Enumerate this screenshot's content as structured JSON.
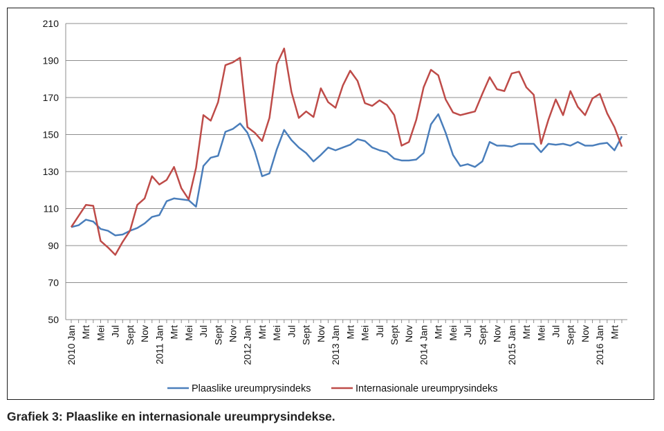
{
  "caption": "Grafiek 3: Plaaslike en internasionale ureumprysindekse.",
  "chart_data": {
    "type": "line",
    "title": "",
    "xlabel": "",
    "ylabel": "",
    "ylim": [
      50,
      210
    ],
    "yticks": [
      50,
      70,
      90,
      110,
      130,
      150,
      170,
      190,
      210
    ],
    "grid": true,
    "legend_position": "bottom",
    "x": [
      "2010 Jan",
      "2010 Feb",
      "2010 Mrt",
      "2010 Apr",
      "2010 Mei",
      "2010 Jun",
      "2010 Jul",
      "2010 Aug",
      "2010 Sept",
      "2010 Okt",
      "2010 Nov",
      "2010 Des",
      "2011 Jan",
      "2011 Feb",
      "2011 Mrt",
      "2011 Apr",
      "2011 Mei",
      "2011 Jun",
      "2011 Jul",
      "2011 Aug",
      "2011 Sept",
      "2011 Okt",
      "2011 Nov",
      "2011 Des",
      "2012 Jan",
      "2012 Feb",
      "2012 Mrt",
      "2012 Apr",
      "2012 Mei",
      "2012 Jun",
      "2012 Jul",
      "2012 Aug",
      "2012 Sept",
      "2012 Okt",
      "2012 Nov",
      "2012 Des",
      "2013 Jan",
      "2013 Feb",
      "2013 Mrt",
      "2013 Apr",
      "2013 Mei",
      "2013 Jun",
      "2013 Jul",
      "2013 Aug",
      "2013 Sept",
      "2013 Okt",
      "2013 Nov",
      "2013 Des",
      "2014 Jan",
      "2014 Feb",
      "2014 Mrt",
      "2014 Apr",
      "2014 Mei",
      "2014 Jun",
      "2014 Jul",
      "2014 Aug",
      "2014 Sept",
      "2014 Okt",
      "2014 Nov",
      "2014 Des",
      "2015 Jan",
      "2015 Feb",
      "2015 Mrt",
      "2015 Apr",
      "2015 Mei",
      "2015 Jun",
      "2015 Jul",
      "2015 Aug",
      "2015 Sept",
      "2015 Okt",
      "2015 Nov",
      "2015 Des",
      "2016 Jan",
      "2016 Feb",
      "2016 Mrt",
      "2016 Apr"
    ],
    "tick_labels": [
      {
        "i": 0,
        "label": "2010 Jan"
      },
      {
        "i": 2,
        "label": "Mrt"
      },
      {
        "i": 4,
        "label": "Mei"
      },
      {
        "i": 6,
        "label": "Jul"
      },
      {
        "i": 8,
        "label": "Sept"
      },
      {
        "i": 10,
        "label": "Nov"
      },
      {
        "i": 12,
        "label": "2011 Jan"
      },
      {
        "i": 14,
        "label": "Mrt"
      },
      {
        "i": 16,
        "label": "Mei"
      },
      {
        "i": 18,
        "label": "Jul"
      },
      {
        "i": 20,
        "label": "Sept"
      },
      {
        "i": 22,
        "label": "Nov"
      },
      {
        "i": 24,
        "label": "2012 Jan"
      },
      {
        "i": 26,
        "label": "Mrt"
      },
      {
        "i": 28,
        "label": "Mei"
      },
      {
        "i": 30,
        "label": "Jul"
      },
      {
        "i": 32,
        "label": "Sept"
      },
      {
        "i": 34,
        "label": "Nov"
      },
      {
        "i": 36,
        "label": "2013 Jan"
      },
      {
        "i": 38,
        "label": "Mrt"
      },
      {
        "i": 40,
        "label": "Mei"
      },
      {
        "i": 42,
        "label": "Jul"
      },
      {
        "i": 44,
        "label": "Sept"
      },
      {
        "i": 46,
        "label": "Nov"
      },
      {
        "i": 48,
        "label": "2014 Jan"
      },
      {
        "i": 50,
        "label": "Mrt"
      },
      {
        "i": 52,
        "label": "Mei"
      },
      {
        "i": 54,
        "label": "Jul"
      },
      {
        "i": 56,
        "label": "Sept"
      },
      {
        "i": 58,
        "label": "Nov"
      },
      {
        "i": 60,
        "label": "2015 Jan"
      },
      {
        "i": 62,
        "label": "Mrt"
      },
      {
        "i": 64,
        "label": "Mei"
      },
      {
        "i": 66,
        "label": "Jul"
      },
      {
        "i": 68,
        "label": "Sept"
      },
      {
        "i": 70,
        "label": "Nov"
      },
      {
        "i": 72,
        "label": "2016 Jan"
      },
      {
        "i": 74,
        "label": "Mrt"
      }
    ],
    "series": [
      {
        "name": "Plaaslike ureumprysindeks",
        "color": "#4a7ebb",
        "values": [
          100,
          101,
          104,
          103,
          99,
          98,
          95.5,
          96,
          98,
          99.5,
          102,
          105.5,
          106.5,
          114,
          115.5,
          115,
          114.5,
          111,
          133,
          137.5,
          138.5,
          151.5,
          153,
          156,
          151,
          141,
          127.5,
          129,
          142,
          152.5,
          147,
          143,
          140,
          135.5,
          139,
          143,
          141.5,
          143,
          144.5,
          147.5,
          146.5,
          143,
          141.5,
          140.5,
          137,
          136,
          136,
          136.5,
          140,
          155.5,
          161,
          151,
          139,
          133,
          134,
          132.5,
          135.5,
          146,
          144,
          144,
          143.5,
          145,
          145,
          145,
          140.5,
          145,
          144.5,
          145,
          144,
          146,
          144,
          144,
          145,
          145.5,
          141.5,
          149
        ]
      },
      {
        "name": "Internasionale ureumprysindeks",
        "color": "#be4b48",
        "values": [
          100,
          106,
          112,
          111.5,
          92.5,
          89,
          85,
          92,
          98,
          112,
          115.5,
          127.5,
          123,
          125.5,
          132.5,
          121,
          115,
          132,
          160.5,
          157.5,
          167.5,
          187.5,
          189,
          191.5,
          154,
          151,
          146.5,
          159,
          188,
          196.5,
          173,
          159,
          162.5,
          159.5,
          175,
          167.5,
          164.5,
          176.5,
          184.5,
          179,
          167,
          165.5,
          168.5,
          166,
          160.5,
          144,
          146,
          158,
          175.5,
          185,
          182,
          169,
          162,
          160.5,
          161.5,
          162.5,
          172,
          181,
          174.5,
          173.5,
          183,
          184,
          175.5,
          171.5,
          145,
          158,
          169,
          160.5,
          173.5,
          165,
          160.5,
          169.5,
          172,
          161.5,
          154,
          143.5
        ]
      }
    ]
  }
}
